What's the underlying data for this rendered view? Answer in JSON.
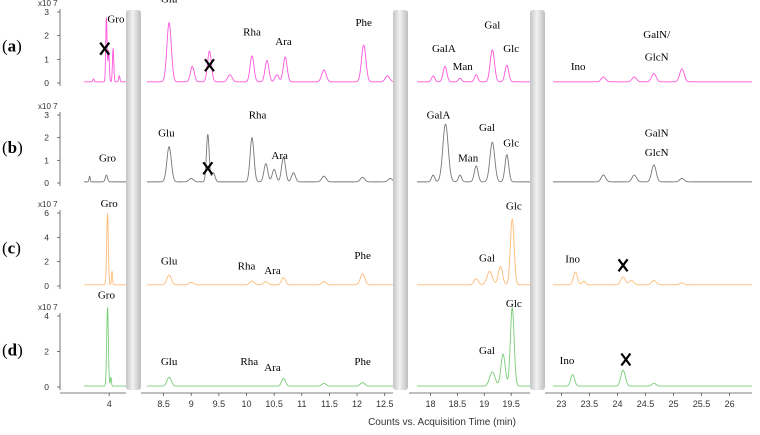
{
  "chart_data": {
    "type": "line",
    "xlabel": "Counts vs. Acquisition Time (min)",
    "y_scale_label": "x10 7",
    "x_segments": [
      {
        "xlim": [
          3.55,
          4.3
        ],
        "ticks": [
          "4"
        ]
      },
      {
        "xlim": [
          8.2,
          12.65
        ],
        "ticks": [
          "8.5",
          "9",
          "9.5",
          "10",
          "10.5",
          "11",
          "11.5",
          "12",
          "12.5"
        ]
      },
      {
        "xlim": [
          17.75,
          19.85
        ],
        "ticks": [
          "18",
          "18.5",
          "19",
          "19.5"
        ]
      },
      {
        "xlim": [
          22.85,
          26.4
        ],
        "ticks": [
          "23",
          "23.5",
          "24",
          "24.5",
          "25",
          "25.5",
          "26"
        ]
      }
    ],
    "panels": [
      {
        "label": "a",
        "color": "#ff55dd",
        "ylim": [
          0,
          3
        ],
        "yticks": [
          "0",
          "1",
          "2",
          "3"
        ],
        "baseline": 0.05,
        "peaks": [
          [
            3.72,
            0.12,
            0.012
          ],
          [
            3.95,
            2.7,
            0.012
          ],
          [
            3.99,
            1.3,
            0.012
          ],
          [
            4.07,
            1.4,
            0.012
          ],
          [
            4.18,
            0.25,
            0.012
          ],
          [
            8.6,
            2.5,
            0.04
          ],
          [
            9.02,
            0.65,
            0.035
          ],
          [
            9.33,
            1.3,
            0.035
          ],
          [
            9.7,
            0.3,
            0.04
          ],
          [
            10.1,
            1.1,
            0.035
          ],
          [
            10.37,
            0.9,
            0.035
          ],
          [
            10.55,
            0.3,
            0.035
          ],
          [
            10.7,
            1.05,
            0.035
          ],
          [
            11.4,
            0.5,
            0.04
          ],
          [
            12.12,
            1.55,
            0.04
          ],
          [
            12.55,
            0.25,
            0.04
          ],
          [
            18.05,
            0.25,
            0.03
          ],
          [
            18.27,
            0.65,
            0.035
          ],
          [
            18.55,
            0.15,
            0.03
          ],
          [
            18.85,
            0.3,
            0.03
          ],
          [
            19.15,
            1.35,
            0.04
          ],
          [
            19.42,
            0.7,
            0.035
          ],
          [
            23.75,
            0.2,
            0.04
          ],
          [
            24.3,
            0.2,
            0.04
          ],
          [
            24.65,
            0.35,
            0.04
          ],
          [
            25.15,
            0.55,
            0.04
          ]
        ],
        "labels": [
          {
            "text": "Gro",
            "x": 4.12,
            "y": 2.55
          },
          {
            "text": "Glu",
            "x": 8.6,
            "y": 3.4
          },
          {
            "text": "Rha",
            "x": 10.1,
            "y": 2.0
          },
          {
            "text": "Ara",
            "x": 10.67,
            "y": 1.6
          },
          {
            "text": "Phe",
            "x": 12.12,
            "y": 2.4
          },
          {
            "text": "GalA",
            "x": 18.25,
            "y": 1.3
          },
          {
            "text": "Man",
            "x": 18.6,
            "y": 0.55
          },
          {
            "text": "Gal",
            "x": 19.15,
            "y": 2.3
          },
          {
            "text": "Glc",
            "x": 19.5,
            "y": 1.3
          },
          {
            "text": "Ino",
            "x": 23.3,
            "y": 0.55
          },
          {
            "text": "GalN/",
            "x": 24.7,
            "y": 1.9
          },
          {
            "text": "GlcN",
            "x": 24.7,
            "y": 0.95
          }
        ],
        "crosses": [
          {
            "x": 3.92,
            "y": 1.45
          },
          {
            "x": 9.33,
            "y": 0.75
          }
        ]
      },
      {
        "label": "b",
        "color": "#777777",
        "ylim": [
          0,
          3
        ],
        "yticks": [
          "0",
          "1",
          "2",
          "3"
        ],
        "baseline": 0.05,
        "peaks": [
          [
            3.65,
            0.25,
            0.01
          ],
          [
            3.95,
            0.3,
            0.02
          ],
          [
            8.6,
            1.55,
            0.04
          ],
          [
            9.0,
            0.15,
            0.04
          ],
          [
            9.3,
            2.1,
            0.025
          ],
          [
            9.4,
            0.4,
            0.03
          ],
          [
            10.1,
            1.95,
            0.035
          ],
          [
            10.35,
            0.8,
            0.035
          ],
          [
            10.5,
            0.55,
            0.035
          ],
          [
            10.67,
            1.1,
            0.035
          ],
          [
            10.85,
            0.4,
            0.035
          ],
          [
            11.4,
            0.25,
            0.04
          ],
          [
            12.1,
            0.2,
            0.04
          ],
          [
            12.6,
            0.15,
            0.04
          ],
          [
            18.05,
            0.3,
            0.03
          ],
          [
            18.28,
            2.55,
            0.05
          ],
          [
            18.55,
            0.3,
            0.03
          ],
          [
            18.85,
            0.7,
            0.035
          ],
          [
            19.15,
            1.75,
            0.045
          ],
          [
            19.42,
            1.2,
            0.035
          ],
          [
            23.75,
            0.3,
            0.04
          ],
          [
            24.3,
            0.3,
            0.04
          ],
          [
            24.65,
            0.75,
            0.04
          ],
          [
            25.15,
            0.15,
            0.04
          ]
        ],
        "labels": [
          {
            "text": "Gro",
            "x": 3.97,
            "y": 0.95
          },
          {
            "text": "Glu",
            "x": 8.55,
            "y": 2.05
          },
          {
            "text": "Rha",
            "x": 10.2,
            "y": 2.85
          },
          {
            "text": "Ara",
            "x": 10.6,
            "y": 1.05
          },
          {
            "text": "GalA",
            "x": 18.15,
            "y": 2.85
          },
          {
            "text": "Man",
            "x": 18.7,
            "y": 0.95
          },
          {
            "text": "Gal",
            "x": 19.05,
            "y": 2.3
          },
          {
            "text": "Glc",
            "x": 19.5,
            "y": 1.6
          },
          {
            "text": "GalN",
            "x": 24.7,
            "y": 2.05
          },
          {
            "text": "GlcN",
            "x": 24.7,
            "y": 1.2
          }
        ],
        "crosses": [
          {
            "x": 9.3,
            "y": 0.65
          }
        ]
      },
      {
        "label": "c",
        "color": "#ffbb77",
        "ylim": [
          0,
          6
        ],
        "yticks": [
          "0",
          "2",
          "4",
          "6"
        ],
        "baseline": 0.1,
        "peaks": [
          [
            3.97,
            5.8,
            0.015
          ],
          [
            4.05,
            1.1,
            0.01
          ],
          [
            8.6,
            0.8,
            0.04
          ],
          [
            9.0,
            0.2,
            0.04
          ],
          [
            10.1,
            0.3,
            0.04
          ],
          [
            10.35,
            0.25,
            0.04
          ],
          [
            10.67,
            0.6,
            0.035
          ],
          [
            11.4,
            0.25,
            0.04
          ],
          [
            12.1,
            0.9,
            0.04
          ],
          [
            18.85,
            0.5,
            0.04
          ],
          [
            19.1,
            1.1,
            0.05
          ],
          [
            19.3,
            1.5,
            0.04
          ],
          [
            19.52,
            5.4,
            0.035
          ],
          [
            23.25,
            1.05,
            0.035
          ],
          [
            23.4,
            0.3,
            0.03
          ],
          [
            24.1,
            0.65,
            0.04
          ],
          [
            24.25,
            0.35,
            0.04
          ],
          [
            24.65,
            0.35,
            0.04
          ],
          [
            25.15,
            0.15,
            0.04
          ]
        ],
        "labels": [
          {
            "text": "Gro",
            "x": 4.0,
            "y": 6.5
          },
          {
            "text": "Glu",
            "x": 8.6,
            "y": 1.75
          },
          {
            "text": "Rha",
            "x": 10.0,
            "y": 1.35
          },
          {
            "text": "Ara",
            "x": 10.47,
            "y": 1.0
          },
          {
            "text": "Phe",
            "x": 12.1,
            "y": 2.2
          },
          {
            "text": "Gal",
            "x": 19.05,
            "y": 2.0
          },
          {
            "text": "Glc",
            "x": 19.55,
            "y": 6.3
          },
          {
            "text": "Ino",
            "x": 23.2,
            "y": 1.95
          }
        ],
        "crosses": [
          {
            "x": 24.1,
            "y": 1.7
          }
        ]
      },
      {
        "label": "d",
        "color": "#77cc77",
        "ylim": [
          0,
          4
        ],
        "yticks": [
          "0",
          "2",
          "4"
        ],
        "baseline": 0.05,
        "peaks": [
          [
            3.97,
            4.4,
            0.015
          ],
          [
            4.03,
            0.5,
            0.01
          ],
          [
            8.6,
            0.5,
            0.04
          ],
          [
            10.67,
            0.45,
            0.035
          ],
          [
            11.4,
            0.15,
            0.04
          ],
          [
            12.1,
            0.2,
            0.04
          ],
          [
            19.15,
            0.8,
            0.05
          ],
          [
            19.35,
            1.8,
            0.04
          ],
          [
            19.52,
            4.4,
            0.035
          ],
          [
            23.2,
            0.65,
            0.035
          ],
          [
            24.1,
            0.9,
            0.04
          ],
          [
            24.65,
            0.15,
            0.04
          ]
        ],
        "labels": [
          {
            "text": "Gro",
            "x": 3.95,
            "y": 5.0
          },
          {
            "text": "Glu",
            "x": 8.6,
            "y": 1.25
          },
          {
            "text": "Rha",
            "x": 10.05,
            "y": 1.25
          },
          {
            "text": "Ara",
            "x": 10.47,
            "y": 0.9
          },
          {
            "text": "Phe",
            "x": 12.1,
            "y": 1.25
          },
          {
            "text": "Gal",
            "x": 19.05,
            "y": 1.85
          },
          {
            "text": "Glc",
            "x": 19.55,
            "y": 4.5
          },
          {
            "text": "Ino",
            "x": 23.1,
            "y": 1.3
          }
        ],
        "crosses": [
          {
            "x": 24.15,
            "y": 1.55
          }
        ]
      }
    ]
  }
}
